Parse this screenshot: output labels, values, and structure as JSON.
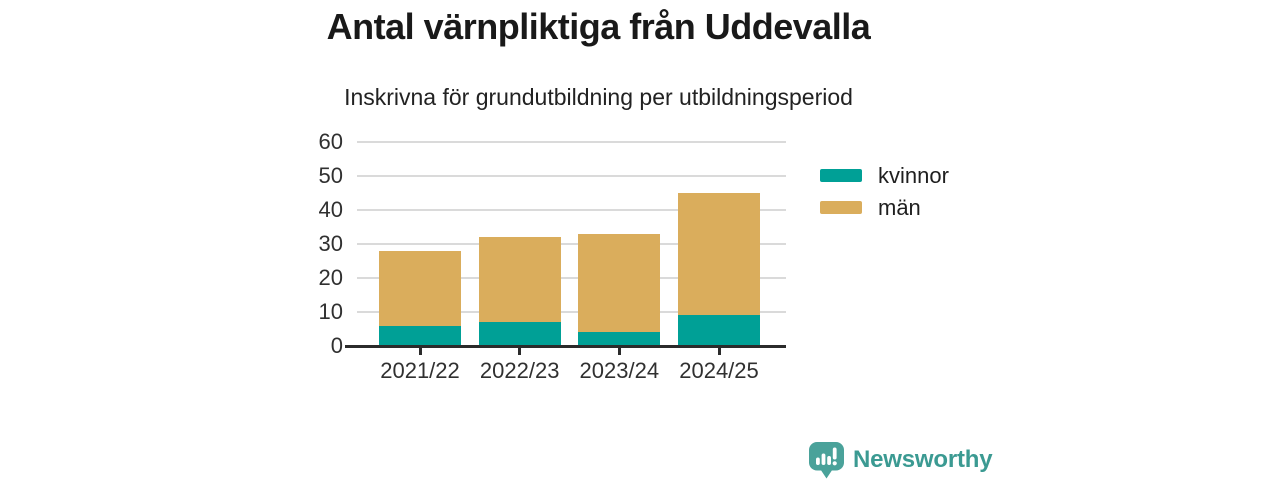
{
  "title": "Antal värnpliktiga från Uddevalla",
  "subtitle": "Inskrivna för grundutbildning per utbildningsperiod",
  "chart_data": {
    "type": "bar",
    "stacked": true,
    "categories": [
      "2021/22",
      "2022/23",
      "2023/24",
      "2024/25"
    ],
    "series": [
      {
        "name": "kvinnor",
        "color": "#00a096",
        "values": [
          6,
          7,
          4,
          9
        ]
      },
      {
        "name": "män",
        "color": "#daad5c",
        "values": [
          22,
          25,
          29,
          36
        ]
      }
    ],
    "totals": [
      28,
      32,
      33,
      45
    ],
    "ylim": [
      0,
      60
    ],
    "yticks": [
      0,
      10,
      20,
      30,
      40,
      50,
      60
    ],
    "xlabel": "",
    "ylabel": "",
    "grid": true,
    "legend_position": "right"
  },
  "colors": {
    "axis": "#2b2b2b",
    "grid": "#dadada",
    "tick_text": "#303030",
    "title_text": "#191919",
    "logo_teal": "#3b9a92",
    "logo_icon": "#4aa29a"
  },
  "logo": {
    "text": "Newsworthy"
  }
}
